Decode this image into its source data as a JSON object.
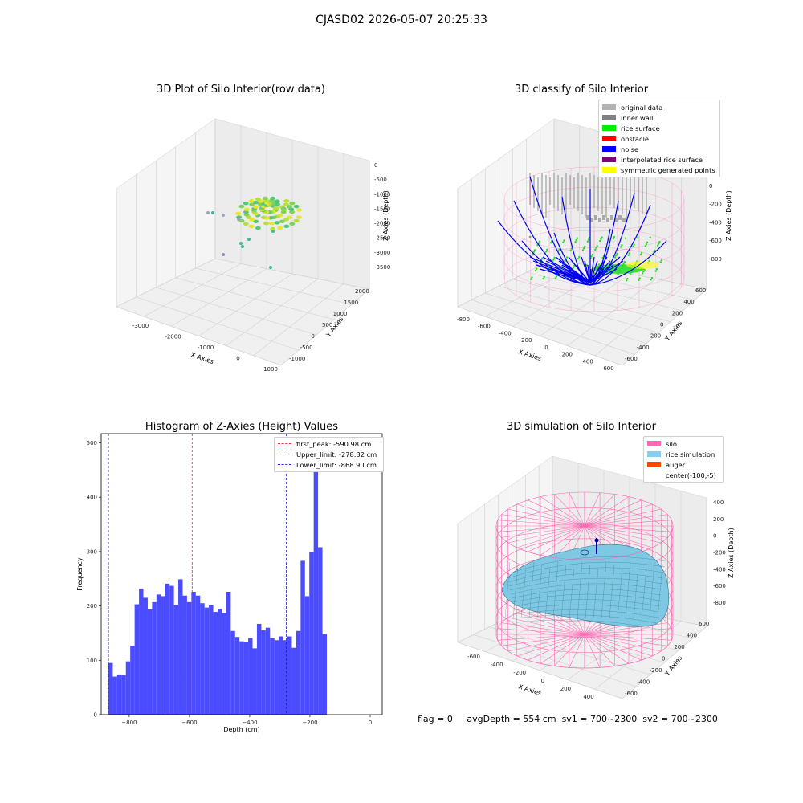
{
  "suptitle": "CJASD02 2026-05-07 20:25:33",
  "footer": {
    "flag": "flag = 0",
    "avg": "avgDepth = 554 cm",
    "sv1": "sv1 = 700~2300",
    "sv2": "sv2 = 700~2300"
  },
  "colors": {
    "histogram_bar": "#4b4bff",
    "first_peak_line": "#e03030",
    "limit_line": "#2020c8",
    "silo_wire": "#ff69b4",
    "rice_surface_fill": "#7ec8e3",
    "noise": "#0000ff",
    "rice_surface_points": "#00ee00",
    "inner_wall": "#808080"
  },
  "chart_data": [
    {
      "type": "scatter",
      "title": "3D Plot of Silo Interior(row data)",
      "xlabel": "X Axies",
      "ylabel": "Y Axies",
      "zlabel": "Z Axies (Depth)",
      "xticks": [
        "-3000",
        "-2000",
        "-1000",
        "0",
        "1000"
      ],
      "yticks": [
        "-1000",
        "-500",
        "0",
        "500",
        "1000",
        "1500",
        "2000"
      ],
      "zticks": [
        "0",
        "-500",
        "-1000",
        "-1500",
        "-2000",
        "-2500",
        "-3000",
        "-3500"
      ]
    },
    {
      "type": "scatter",
      "title": "3D classify of Silo Interior",
      "xlabel": "X Axies",
      "ylabel": "Y Axies",
      "zlabel": "Z Axies (Depth)",
      "xticks": [
        "-800",
        "-600",
        "-400",
        "-200",
        "0",
        "200",
        "400",
        "600"
      ],
      "yticks": [
        "-600",
        "-400",
        "-200",
        "0",
        "200",
        "400",
        "600"
      ],
      "zticks": [
        "200",
        "0",
        "-200",
        "-400",
        "-600",
        "-800"
      ],
      "ztop": "200",
      "legend": [
        {
          "label": "original data",
          "color": "#b3b3b3"
        },
        {
          "label": "inner wall",
          "color": "#808080"
        },
        {
          "label": "rice surface",
          "color": "#00ee00"
        },
        {
          "label": "obstacle",
          "color": "#ff0000"
        },
        {
          "label": "noise",
          "color": "#0000ff"
        },
        {
          "label": "interpolated rice surface",
          "color": "#800080"
        },
        {
          "label": "symmetric generated points",
          "color": "#ffff00"
        }
      ]
    },
    {
      "type": "bar",
      "title": "Histogram of Z-Axies (Height) Values",
      "xlabel": "Depth (cm)",
      "ylabel": "Frequency",
      "xlim": [
        -893,
        40
      ],
      "ylim": [
        0,
        517
      ],
      "xticks": [
        -800,
        -600,
        -400,
        -200,
        0
      ],
      "yticks": [
        0,
        100,
        200,
        300,
        400,
        500
      ],
      "bin_start": -869,
      "bin_width": 14.5,
      "values": [
        95,
        70,
        74,
        73,
        98,
        127,
        203,
        232,
        215,
        194,
        207,
        221,
        218,
        241,
        237,
        202,
        249,
        219,
        207,
        226,
        219,
        205,
        197,
        201,
        189,
        195,
        187,
        226,
        154,
        143,
        135,
        133,
        141,
        122,
        167,
        155,
        160,
        141,
        137,
        144,
        137,
        144,
        123,
        154,
        283,
        218,
        299,
        472,
        308,
        148
      ],
      "vlines": [
        {
          "label": "first_peak: -590.98 cm",
          "x": -590.98,
          "color": "#e03030"
        },
        {
          "label": "Upper_limit: -278.32 cm",
          "x": -278.32,
          "color": "#2020c8"
        },
        {
          "label": "Lower_limit: -868.90 cm",
          "x": -868.9,
          "color": "#2020c8"
        }
      ]
    },
    {
      "type": "area",
      "title": "3D simulation of Silo Interior",
      "xlabel": "X Axies",
      "ylabel": "Y Axies",
      "zlabel": "Z Axies (Depth)",
      "xticks": [
        "-600",
        "-400",
        "-200",
        "0",
        "200",
        "400"
      ],
      "yticks": [
        "-600",
        "-400",
        "-200",
        "0",
        "200",
        "400",
        "600"
      ],
      "zticks": [
        "400",
        "200",
        "0",
        "-200",
        "-400",
        "-600",
        "-800"
      ],
      "legend": [
        {
          "label": "silo",
          "color": "#ff69b4"
        },
        {
          "label": "rice simulation",
          "color": "#87ceeb"
        },
        {
          "label": "auger",
          "color": "#ff4500"
        },
        {
          "label": "center(-100,-5)",
          "color": ""
        }
      ]
    }
  ]
}
